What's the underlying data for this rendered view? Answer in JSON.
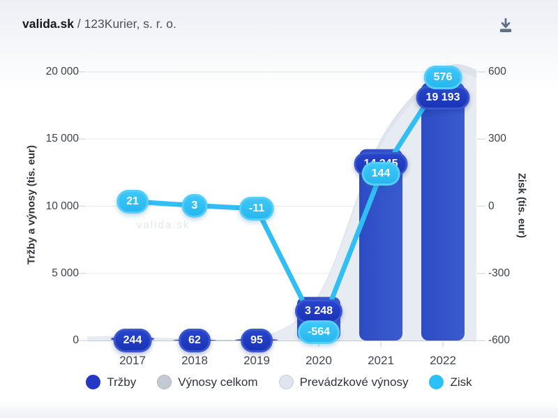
{
  "header": {
    "brand": "valida.sk",
    "separator": "/",
    "company": "123Kurier, s. r. o."
  },
  "watermark": "valida.sk",
  "chart_data": {
    "type": "bar",
    "subtype": "combo-bar-line-dual-axis",
    "categories": [
      "2017",
      "2018",
      "2019",
      "2020",
      "2021",
      "2022"
    ],
    "series": [
      {
        "name": "Tržby",
        "type": "bar",
        "axis": "left",
        "color": "#3354c8",
        "values": [
          244,
          62,
          95,
          3248,
          14245,
          19193
        ],
        "labels": [
          "244",
          "62",
          "95",
          "3 248",
          "14 245",
          "19 193"
        ]
      },
      {
        "name": "Výnosy celkom",
        "type": "area",
        "axis": "left",
        "color": "#d7dce6",
        "values": null
      },
      {
        "name": "Prevádzkové výnosy",
        "type": "area",
        "axis": "left",
        "color": "#e7ebf2",
        "values": null
      },
      {
        "name": "Zisk",
        "type": "line",
        "axis": "right",
        "color": "#31bef3",
        "values": [
          21,
          3,
          -11,
          -564,
          144,
          576
        ],
        "labels": [
          "21",
          "3",
          "-11",
          "-564",
          "144",
          "576"
        ]
      }
    ],
    "left_axis": {
      "title": "Tržby a výnosy (tis. eur)",
      "min": 0,
      "max": 20000,
      "tick_values": [
        20000,
        15000,
        10000,
        5000,
        0
      ],
      "tick_labels": [
        "20 000",
        "15 000",
        "10 000",
        "5 000",
        "0"
      ]
    },
    "right_axis": {
      "title": "Zisk (tis. eur)",
      "min": -600,
      "max": 600,
      "tick_values": [
        600,
        300,
        0,
        -300,
        -600
      ],
      "tick_labels": [
        "600",
        "300",
        "0",
        "-300",
        "-600"
      ]
    },
    "grid": true,
    "legend_position": "bottom",
    "legend": [
      {
        "label": "Tržby",
        "color": "#2438c2",
        "border": "#2438c2"
      },
      {
        "label": "Výnosy celkom",
        "color": "#c4cad4",
        "border": "#aeb5c1"
      },
      {
        "label": "Prevádzkové výnosy",
        "color": "#dfe5ef",
        "border": "#c5cedd"
      },
      {
        "label": "Zisk",
        "color": "#2cc1f6",
        "border": "#2cc1f6"
      }
    ]
  }
}
